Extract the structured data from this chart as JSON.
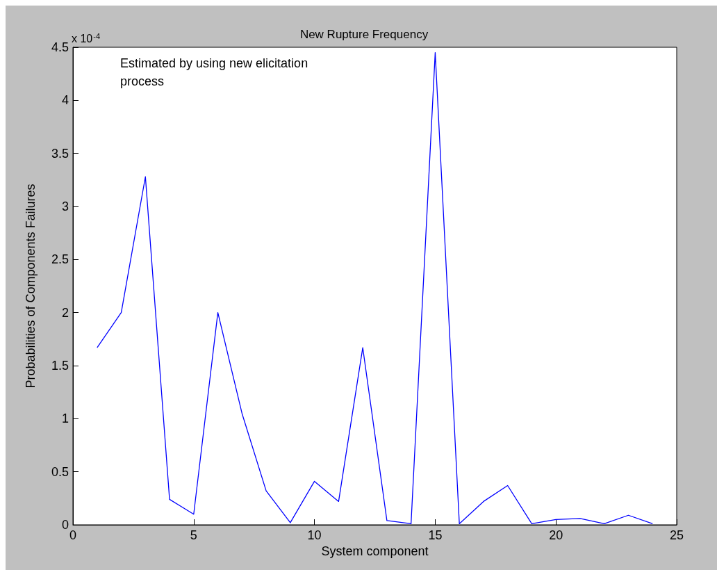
{
  "chart_data": {
    "type": "line",
    "title": "New Rupture Frequency",
    "xlabel": "System component",
    "ylabel": "Probabilities of Components Failures",
    "annotations": [
      "x 10$^{-4}$",
      "Estimated by using new elicitation\nprocess"
    ],
    "x": [
      1,
      2,
      3,
      4,
      5,
      6,
      7,
      8,
      9,
      10,
      11,
      12,
      13,
      14,
      15,
      16,
      17,
      18,
      19,
      20,
      21,
      22,
      23,
      24
    ],
    "series": [
      {
        "color": "#0000ff",
        "values": [
          1.67,
          2.0,
          3.28,
          0.24,
          0.1,
          2.0,
          1.05,
          0.32,
          0.02,
          0.41,
          0.22,
          1.67,
          0.04,
          0.01,
          4.45,
          0.01,
          0.22,
          0.37,
          0.01,
          0.05,
          0.06,
          0.01,
          0.09,
          0.01
        ]
      }
    ],
    "xlim": [
      0,
      25
    ],
    "xticks": [
      0,
      5,
      10,
      15,
      20,
      25
    ],
    "ylim": [
      0,
      4.5
    ],
    "yticks": [
      0,
      0.5,
      1,
      1.5,
      2,
      2.5,
      3,
      3.5,
      4,
      4.5
    ],
    "grid": false,
    "marker": "none",
    "line_style": "solid"
  }
}
